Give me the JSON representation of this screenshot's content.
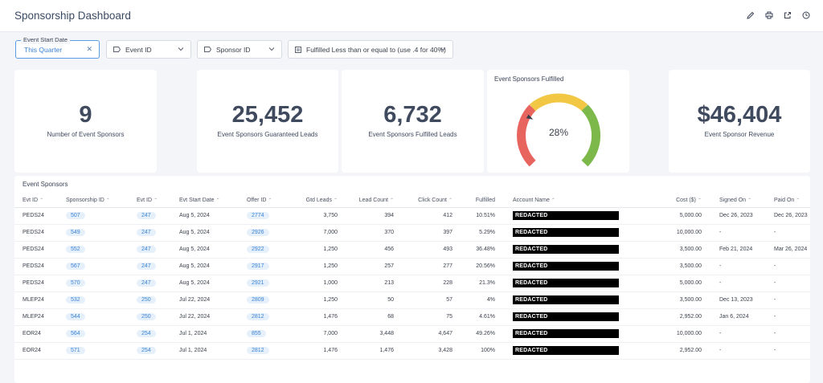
{
  "header": {
    "title": "Sponsorship Dashboard",
    "icons": [
      "pencil-icon",
      "print-icon",
      "share-icon",
      "clock-icon"
    ]
  },
  "filters": {
    "event_start_date": {
      "label": "Event Start Date",
      "value": "This Quarter"
    },
    "event_id": {
      "label": "Event ID"
    },
    "sponsor_id": {
      "label": "Sponsor ID"
    },
    "fulfilled": {
      "label": "Fulfilled Less than or equal to (use .4 for 40%)"
    }
  },
  "kpis": {
    "sponsors": {
      "value": "9",
      "label": "Number of Event Sponsors"
    },
    "guaranteed": {
      "value": "25,452",
      "label": "Event Sponsors Guaranteed Leads"
    },
    "fulfilled_leads": {
      "value": "6,732",
      "label": "Event Sponsors Fulfilled Leads"
    },
    "revenue": {
      "value": "$46,404",
      "label": "Event Sponsor Revenue"
    }
  },
  "gauge": {
    "title": "Event Sponsors Fulfilled",
    "value_label": "28%",
    "value": 0.28,
    "colors": {
      "red": "#e8645f",
      "yellow": "#f2c744",
      "green": "#7cb84a"
    }
  },
  "table": {
    "title": "Event Sponsors",
    "columns": [
      "Evt ID",
      "Sponsorship ID",
      "Evt ID",
      "Evt Start Date",
      "Offer ID",
      "Gtd Leads",
      "Lead Count",
      "Click Count",
      "Fulfilled",
      "Account Name",
      "Cost ($)",
      "Signed On",
      "Paid On"
    ],
    "rows": [
      [
        "PEDS24",
        "507",
        "247",
        "Aug 5, 2024",
        "2774",
        "3,750",
        "394",
        "412",
        "10.51%",
        "REDACTED",
        "5,000.00",
        "Dec 26, 2023",
        "Dec 26, 2023"
      ],
      [
        "PEDS24",
        "549",
        "247",
        "Aug 5, 2024",
        "2926",
        "7,000",
        "370",
        "397",
        "5.29%",
        "REDACTED",
        "10,000.00",
        "-",
        "-"
      ],
      [
        "PEDS24",
        "552",
        "247",
        "Aug 5, 2024",
        "2922",
        "1,250",
        "456",
        "493",
        "36.48%",
        "REDACTED",
        "3,500.00",
        "Feb 21, 2024",
        "Mar 26, 2024"
      ],
      [
        "PEDS24",
        "567",
        "247",
        "Aug 5, 2024",
        "2917",
        "1,250",
        "257",
        "277",
        "20.56%",
        "REDACTED",
        "3,500.00",
        "-",
        "-"
      ],
      [
        "PEDS24",
        "570",
        "247",
        "Aug 5, 2024",
        "2921",
        "1,000",
        "213",
        "228",
        "21.3%",
        "REDACTED",
        "5,000.00",
        "-",
        "-"
      ],
      [
        "MLEP24",
        "532",
        "250",
        "Jul 22, 2024",
        "2809",
        "1,250",
        "50",
        "57",
        "4%",
        "REDACTED",
        "3,500.00",
        "Dec 13, 2023",
        "-"
      ],
      [
        "MLEP24",
        "544",
        "250",
        "Jul 22, 2024",
        "2812",
        "1,476",
        "68",
        "75",
        "4.61%",
        "REDACTED",
        "2,952.00",
        "Jan 6, 2024",
        "-"
      ],
      [
        "EOR24",
        "564",
        "254",
        "Jul 1, 2024",
        "855",
        "7,000",
        "3,448",
        "4,647",
        "49.26%",
        "REDACTED",
        "10,000.00",
        "-",
        "-"
      ],
      [
        "EOR24",
        "571",
        "254",
        "Jul 1, 2024",
        "2812",
        "1,476",
        "1,476",
        "3,428",
        "100%",
        "REDACTED",
        "2,952.00",
        "-",
        "-"
      ]
    ]
  }
}
